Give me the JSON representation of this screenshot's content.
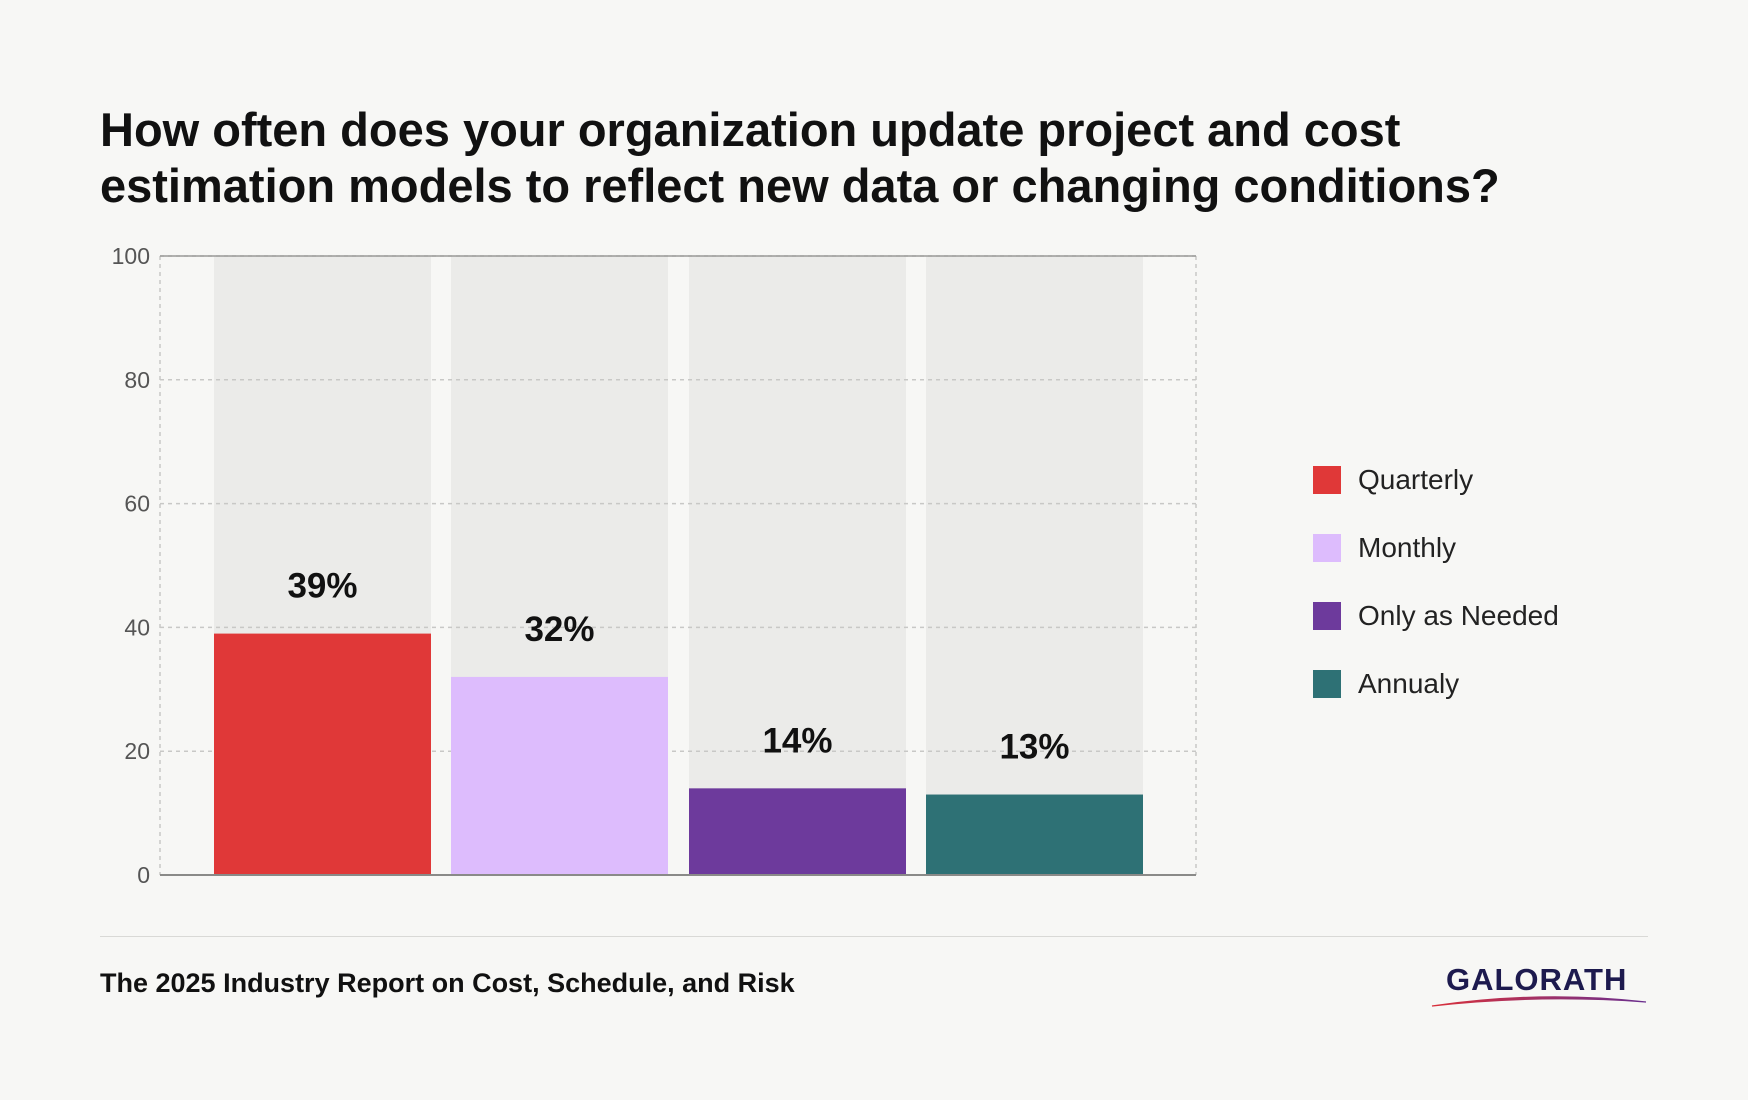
{
  "title_lines": [
    "How often does your organization update project and cost",
    "estimation models to reflect new data or changing conditions?"
  ],
  "chart_data": {
    "type": "bar",
    "categories": [
      "Quarterly",
      "Monthly",
      "Only as Needed",
      "Annualy"
    ],
    "values": [
      39,
      32,
      14,
      13
    ],
    "value_labels": [
      "39%",
      "32%",
      "14%",
      "13%"
    ],
    "colors": [
      "#e03838",
      "#ddbcfd",
      "#6d3a9c",
      "#2e7175"
    ],
    "background_column_color": "#ebebe9",
    "ylim": [
      0,
      100
    ],
    "yticks": [
      0,
      20,
      40,
      60,
      80,
      100
    ],
    "grid": true,
    "legend_position": "right"
  },
  "legend": [
    {
      "label": "Quarterly",
      "color": "#e03838"
    },
    {
      "label": "Monthly",
      "color": "#ddbcfd"
    },
    {
      "label": "Only as Needed",
      "color": "#6d3a9c"
    },
    {
      "label": "Annualy",
      "color": "#2e7175"
    }
  ],
  "footer": {
    "source": "The 2025 Industry Report on Cost, Schedule, and Risk"
  },
  "logo": {
    "text": "GALORATH"
  }
}
